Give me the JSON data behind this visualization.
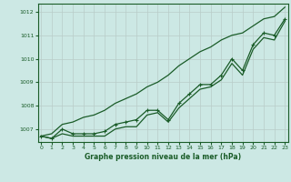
{
  "x": [
    0,
    1,
    2,
    3,
    4,
    5,
    6,
    7,
    8,
    9,
    10,
    11,
    12,
    13,
    14,
    15,
    16,
    17,
    18,
    19,
    20,
    21,
    22,
    23
  ],
  "y_main": [
    1006.7,
    1006.6,
    1007.0,
    1006.8,
    1006.8,
    1006.8,
    1006.9,
    1007.2,
    1007.3,
    1007.4,
    1007.8,
    1007.8,
    1007.4,
    1008.1,
    1008.5,
    1008.9,
    1008.9,
    1009.3,
    1010.0,
    1009.5,
    1010.6,
    1011.1,
    1011.0,
    1011.7
  ],
  "y_upper": [
    1006.7,
    1006.8,
    1007.2,
    1007.3,
    1007.5,
    1007.6,
    1007.8,
    1008.1,
    1008.3,
    1008.5,
    1008.8,
    1009.0,
    1009.3,
    1009.7,
    1010.0,
    1010.3,
    1010.5,
    1010.8,
    1011.0,
    1011.1,
    1011.4,
    1011.7,
    1011.8,
    1012.2
  ],
  "y_lower": [
    1006.7,
    1006.6,
    1006.8,
    1006.7,
    1006.7,
    1006.7,
    1006.7,
    1007.0,
    1007.1,
    1007.1,
    1007.6,
    1007.7,
    1007.3,
    1007.9,
    1008.3,
    1008.7,
    1008.8,
    1009.1,
    1009.8,
    1009.3,
    1010.4,
    1010.9,
    1010.8,
    1011.6
  ],
  "bg_color": "#cce8e4",
  "line_color": "#1a5c28",
  "grid_color": "#b8ccc8",
  "xlabel": "Graphe pression niveau de la mer (hPa)",
  "xlabel_color": "#1a5c28",
  "ylabel_ticks": [
    1007,
    1008,
    1009,
    1010,
    1011,
    1012
  ],
  "xticks": [
    0,
    1,
    2,
    3,
    4,
    5,
    6,
    7,
    8,
    9,
    10,
    11,
    12,
    13,
    14,
    15,
    16,
    17,
    18,
    19,
    20,
    21,
    22,
    23
  ],
  "ylim": [
    1006.45,
    1012.35
  ],
  "xlim": [
    -0.3,
    23.3
  ]
}
